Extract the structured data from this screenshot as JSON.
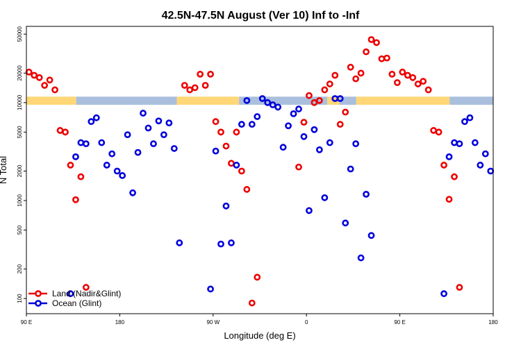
{
  "chart_data": {
    "type": "scatter",
    "title": "42.5N-47.5N August (Ver 10)   Inf to -Inf",
    "xlabel": "Longitude (deg E)",
    "ylabel": "N Total",
    "y_scale": "log",
    "xlim": [
      0,
      450
    ],
    "ylim": [
      70,
      60000
    ],
    "x_ticks": [
      {
        "v": 0,
        "label": "90 E"
      },
      {
        "v": 90,
        "label": "180"
      },
      {
        "v": 180,
        "label": "90 W"
      },
      {
        "v": 270,
        "label": "0"
      },
      {
        "v": 360,
        "label": "90 E"
      },
      {
        "v": 450,
        "label": "180"
      }
    ],
    "y_ticks": [
      {
        "v": 100,
        "label": "100"
      },
      {
        "v": 200,
        "label": "200"
      },
      {
        "v": 500,
        "label": "500"
      },
      {
        "v": 1000,
        "label": "1000"
      },
      {
        "v": 2000,
        "label": "2000"
      },
      {
        "v": 5000,
        "label": "5000"
      },
      {
        "v": 10000,
        "label": "10000"
      },
      {
        "v": 20000,
        "label": "20000"
      },
      {
        "v": 50000,
        "label": "50000"
      }
    ],
    "colors": {
      "land": "#ee0000",
      "ocean": "#0000dd",
      "land_band": "#ffd777",
      "ocean_band": "#a9bfdd"
    },
    "series": [
      {
        "name": "Land (Nadir&Glint)",
        "color": "#ee0000",
        "points": [
          [
            2.5,
            20500
          ],
          [
            7.5,
            19000
          ],
          [
            12.5,
            18000
          ],
          [
            17.5,
            15000
          ],
          [
            22.5,
            17000
          ],
          [
            27.5,
            13500
          ],
          [
            32.5,
            5200
          ],
          [
            37.5,
            5000
          ],
          [
            42.5,
            2300
          ],
          [
            47.5,
            1020
          ],
          [
            52.5,
            1750
          ],
          [
            57.5,
            130
          ],
          [
            152.5,
            15000
          ],
          [
            157.5,
            13500
          ],
          [
            162.5,
            14200
          ],
          [
            167.5,
            19500
          ],
          [
            172.5,
            15000
          ],
          [
            177.5,
            19500
          ],
          [
            182.5,
            6400
          ],
          [
            187.5,
            5000
          ],
          [
            192.5,
            3600
          ],
          [
            197.5,
            2400
          ],
          [
            202.5,
            5000
          ],
          [
            207.5,
            2000
          ],
          [
            212.5,
            1300
          ],
          [
            217.5,
            90
          ],
          [
            222.5,
            165
          ],
          [
            262.5,
            2200
          ],
          [
            267.5,
            6300
          ],
          [
            272.5,
            11800
          ],
          [
            277.5,
            10000
          ],
          [
            282.5,
            10500
          ],
          [
            287.5,
            13500
          ],
          [
            292.5,
            15500
          ],
          [
            297.5,
            19000
          ],
          [
            302.5,
            6000
          ],
          [
            307.5,
            8000
          ],
          [
            312.5,
            23000
          ],
          [
            317.5,
            17500
          ],
          [
            322.5,
            20000
          ],
          [
            327.5,
            33000
          ],
          [
            332.5,
            44000
          ],
          [
            337.5,
            41000
          ],
          [
            342.5,
            28000
          ],
          [
            347.5,
            28500
          ],
          [
            352.5,
            19500
          ],
          [
            357.5,
            16000
          ],
          [
            362.5,
            20500
          ],
          [
            367.5,
            19000
          ],
          [
            372.5,
            18000
          ],
          [
            377.5,
            15500
          ],
          [
            382.5,
            16500
          ],
          [
            387.5,
            13500
          ],
          [
            392.5,
            5200
          ],
          [
            397.5,
            5000
          ],
          [
            402.5,
            2300
          ],
          [
            407.5,
            1030
          ],
          [
            412.5,
            1750
          ],
          [
            417.5,
            130
          ]
        ]
      },
      {
        "name": "Ocean (Glint)",
        "color": "#0000dd",
        "points": [
          [
            42.5,
            112
          ],
          [
            47.5,
            2800
          ],
          [
            52.5,
            3900
          ],
          [
            57.5,
            3800
          ],
          [
            62.5,
            6400
          ],
          [
            67.5,
            7000
          ],
          [
            72.5,
            3900
          ],
          [
            77.5,
            2300
          ],
          [
            82.5,
            3000
          ],
          [
            87.5,
            2000
          ],
          [
            92.5,
            1800
          ],
          [
            97.5,
            4700
          ],
          [
            102.5,
            1200
          ],
          [
            107.5,
            3100
          ],
          [
            112.5,
            7800
          ],
          [
            117.5,
            5500
          ],
          [
            122.5,
            3800
          ],
          [
            127.5,
            6500
          ],
          [
            132.5,
            4700
          ],
          [
            137.5,
            6200
          ],
          [
            142.5,
            3400
          ],
          [
            147.5,
            370
          ],
          [
            177.5,
            125
          ],
          [
            182.5,
            3200
          ],
          [
            187.5,
            360
          ],
          [
            192.5,
            880
          ],
          [
            197.5,
            370
          ],
          [
            202.5,
            2300
          ],
          [
            207.5,
            6000
          ],
          [
            212.5,
            10500
          ],
          [
            217.5,
            6000
          ],
          [
            222.5,
            7200
          ],
          [
            227.5,
            11000
          ],
          [
            232.5,
            10000
          ],
          [
            237.5,
            9500
          ],
          [
            242.5,
            9000
          ],
          [
            247.5,
            3500
          ],
          [
            252.5,
            5800
          ],
          [
            257.5,
            7700
          ],
          [
            262.5,
            8600
          ],
          [
            267.5,
            4500
          ],
          [
            272.5,
            790
          ],
          [
            277.5,
            5300
          ],
          [
            282.5,
            3300
          ],
          [
            287.5,
            1070
          ],
          [
            292.5,
            3900
          ],
          [
            297.5,
            11000
          ],
          [
            302.5,
            11000
          ],
          [
            307.5,
            590
          ],
          [
            312.5,
            2100
          ],
          [
            317.5,
            3800
          ],
          [
            322.5,
            260
          ],
          [
            327.5,
            1160
          ],
          [
            332.5,
            440
          ],
          [
            402.5,
            112
          ],
          [
            407.5,
            2800
          ],
          [
            412.5,
            3900
          ],
          [
            417.5,
            3800
          ],
          [
            422.5,
            6400
          ],
          [
            427.5,
            7000
          ],
          [
            432.5,
            3900
          ],
          [
            437.5,
            2300
          ],
          [
            442.5,
            3000
          ],
          [
            447.5,
            2000
          ]
        ]
      }
    ],
    "band": {
      "y_low": 9500,
      "y_high": 11500,
      "segments": [
        {
          "x0": 0,
          "x1": 48,
          "type": "land"
        },
        {
          "x0": 48,
          "x1": 145,
          "type": "ocean"
        },
        {
          "x0": 145,
          "x1": 205,
          "type": "land"
        },
        {
          "x0": 205,
          "x1": 290,
          "type": "ocean"
        },
        {
          "x0": 290,
          "x1": 302,
          "type": "land"
        },
        {
          "x0": 302,
          "x1": 318,
          "type": "ocean"
        },
        {
          "x0": 318,
          "x1": 408,
          "type": "land"
        },
        {
          "x0": 408,
          "x1": 450,
          "type": "ocean"
        }
      ]
    },
    "legend": {
      "position": "bottom-left",
      "entries": [
        {
          "label": "Land (Nadir&Glint)",
          "color": "#ee0000"
        },
        {
          "label": "Ocean (Glint)",
          "color": "#0000dd"
        }
      ]
    }
  }
}
